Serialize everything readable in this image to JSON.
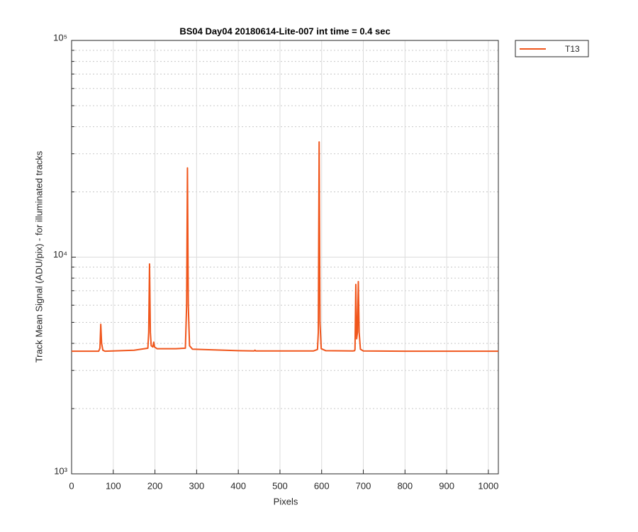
{
  "chart_data": {
    "type": "line",
    "title": "BS04 Day04 20180614-Lite-007 int time = 0.4 sec",
    "x_label": "Pixels",
    "y_label": "Track Mean Signal (ADU/pix) - for illuminated tracks",
    "y_log": true,
    "grid": true,
    "legend_position": "outside-top-right",
    "xlim": [
      0,
      1024
    ],
    "xticks": [
      0,
      100,
      200,
      300,
      400,
      500,
      600,
      700,
      800,
      900,
      1000
    ],
    "ylim": [
      1000,
      100000
    ],
    "yticks": [
      {
        "value": 1000,
        "label": "10³"
      },
      {
        "value": 10000,
        "label": "10⁴"
      },
      {
        "value": 100000,
        "label": "10⁵"
      }
    ],
    "yminorticks": [
      2000,
      3000,
      4000,
      5000,
      6000,
      7000,
      8000,
      9000,
      20000,
      30000,
      40000,
      50000,
      60000,
      70000,
      80000,
      90000
    ],
    "x": [
      0,
      65,
      68,
      70,
      72,
      75,
      80,
      150,
      183,
      185,
      187,
      189,
      191,
      195,
      197,
      199,
      205,
      250,
      273,
      276,
      278,
      280,
      283,
      290,
      400,
      438,
      440,
      442,
      580,
      590,
      592,
      594,
      596,
      599,
      610,
      675,
      679,
      680,
      682,
      684,
      686,
      688,
      690,
      693,
      700,
      800,
      1024
    ],
    "series": [
      {
        "name": "T13",
        "color": "#f0561c",
        "values": [
          3680,
          3680,
          3800,
          4900,
          4000,
          3720,
          3680,
          3720,
          3800,
          4500,
          9300,
          4500,
          3900,
          3850,
          4050,
          3850,
          3780,
          3780,
          3800,
          6000,
          25800,
          6000,
          3900,
          3760,
          3700,
          3690,
          3720,
          3690,
          3690,
          3750,
          4500,
          34000,
          5000,
          3780,
          3700,
          3690,
          3700,
          3750,
          7480,
          4200,
          4500,
          7710,
          4500,
          3760,
          3690,
          3680,
          3680
        ]
      }
    ]
  }
}
